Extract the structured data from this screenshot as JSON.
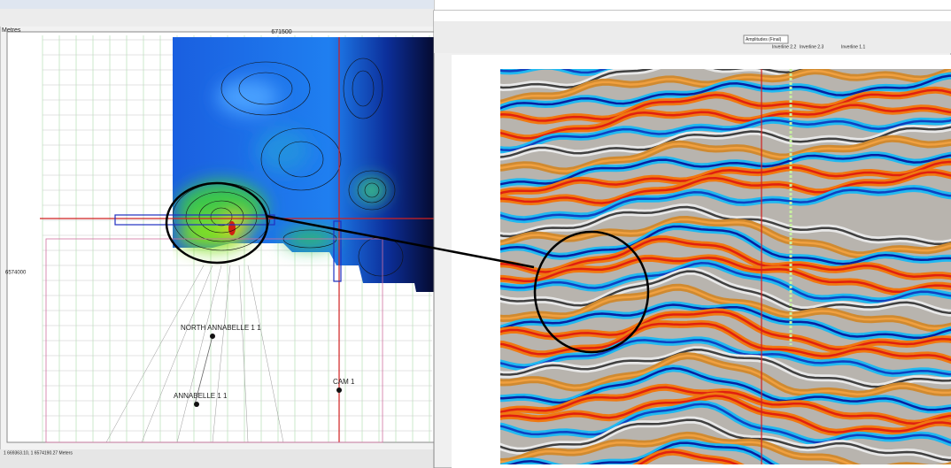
{
  "left_window": {
    "axis_x": "671500",
    "axis_y": "6574000",
    "wells": [
      "NORTH ANNABELLE 1  1",
      "ANNABELLE 1  1",
      "CAM 1"
    ],
    "status": "1 669363.10, 1 6574190.27 Meters",
    "corner": "Metres"
  },
  "right_window": {
    "mode": "Amplitudes (Final)",
    "inlines": [
      "Inverline 2.2",
      "Inverline 2.3",
      "Inverline 1.1"
    ]
  }
}
